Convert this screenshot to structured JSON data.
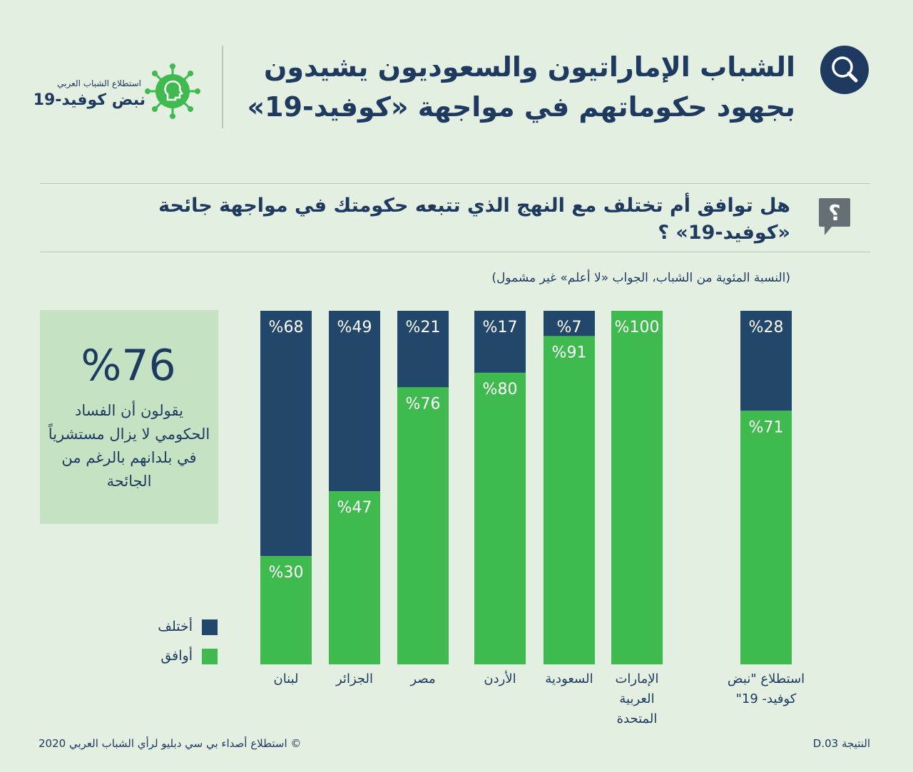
{
  "title": {
    "line1": "الشباب الإماراتيون والسعوديون يشيدون",
    "line2": "بجهود حكوماتهم في مواجهة «كوفيد-19»"
  },
  "logo": {
    "sub": "استطلاع الشباب العربي",
    "main": "نبض كوفيد-19"
  },
  "question": {
    "line1": "هل توافق أم تختلف مع النهج الذي تتبعه حكومتك في مواجهة جائحة",
    "line2": "«كوفيد-19» ؟"
  },
  "note": "(النسبة المئوية من الشباب، الجواب «لا أعلم» غير مشمول)",
  "callout": {
    "value": "%76",
    "text": "يقولون أن الفساد الحكومي لا يزال مستشرياً في بلدانهم بالرغم من الجائحة"
  },
  "legend": {
    "disagree": "أختلف",
    "agree": "أوافق"
  },
  "colors": {
    "disagree": "#23476b",
    "agree": "#3fba4e",
    "background": "#e3efe0",
    "callout": "#c5e2c2"
  },
  "chart_data": {
    "type": "bar",
    "stacked": true,
    "categories": [
      "لبنان",
      "الجزائر",
      "مصر",
      "الأردن",
      "السعودية",
      "الإمارات العربية المتحدة",
      "استطلاع \"نبض كوفيد- 19\""
    ],
    "category_lines": [
      [
        "لبنان"
      ],
      [
        "الجزائر"
      ],
      [
        "مصر"
      ],
      [
        "الأردن"
      ],
      [
        "السعودية"
      ],
      [
        "الإمارات",
        "العربية",
        "المتحدة"
      ],
      [
        "استطلاع \"نبض",
        "كوفيد- 19\""
      ]
    ],
    "series": [
      {
        "name": "أوافق",
        "values": [
          30,
          47,
          76,
          80,
          91,
          100,
          71
        ]
      },
      {
        "name": "أختلف",
        "values": [
          68,
          49,
          21,
          17,
          7,
          0,
          28
        ]
      }
    ],
    "value_labels": {
      "agree": [
        "%30",
        "%47",
        "%76",
        "%80",
        "%91",
        "%100",
        "%71"
      ],
      "disagree": [
        "%68",
        "%49",
        "%21",
        "%17",
        "%7",
        "",
        "%28"
      ]
    },
    "ylim": [
      0,
      100
    ],
    "legend_position": "bottom-left"
  },
  "footer": {
    "left": "© استطلاع أصداء بي سي دبليو لرأي الشباب العربي 2020",
    "right": "النتيجة D.03"
  }
}
